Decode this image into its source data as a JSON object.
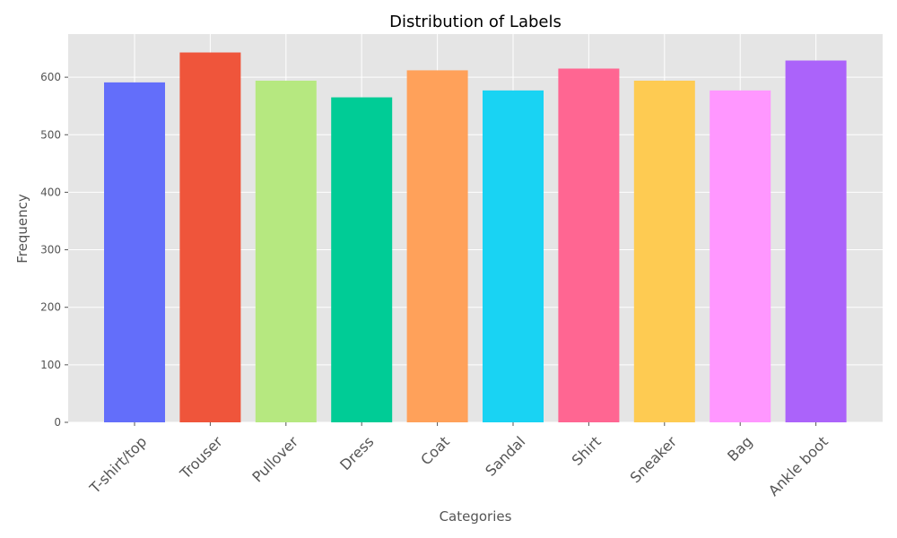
{
  "chart_data": {
    "type": "bar",
    "title": "Distribution of Labels",
    "xlabel": "Categories",
    "ylabel": "Frequency",
    "categories": [
      "T-shirt/top",
      "Trouser",
      "Pullover",
      "Dress",
      "Coat",
      "Sandal",
      "Shirt",
      "Sneaker",
      "Bag",
      "Ankle boot"
    ],
    "values": [
      591,
      643,
      594,
      565,
      612,
      577,
      615,
      594,
      577,
      629
    ],
    "colors": [
      "#636efa",
      "#ef553b",
      "#b6e880",
      "#00cc96",
      "#ffa15a",
      "#19d3f3",
      "#ff6692",
      "#fecb52",
      "#ff97ff",
      "#ab63fa"
    ],
    "ylim": [
      0,
      675
    ],
    "yticks": [
      0,
      100,
      200,
      300,
      400,
      500,
      600
    ],
    "grid": true,
    "background": "#e5e5e5"
  }
}
